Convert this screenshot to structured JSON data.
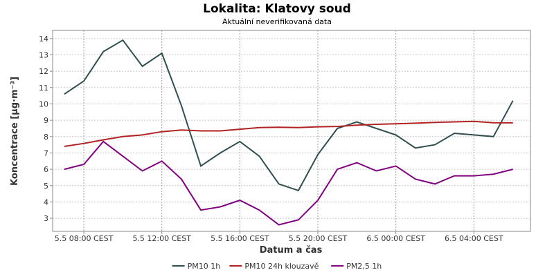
{
  "chart_data": {
    "type": "line",
    "title": "Lokalita: Klatovy soud",
    "subtitle": "Aktuální neverifikovaná data",
    "xlabel": "Datum a čas",
    "ylabel": "Koncentrace [µg·m⁻³]",
    "ylim": [
      2.2,
      14.5
    ],
    "yticks": [
      3,
      4,
      5,
      6,
      7,
      8,
      9,
      10,
      11,
      12,
      13,
      14
    ],
    "x_start": "2025-05-05T07:00",
    "x_step_hours": 1,
    "x": [
      "5.5 07:00",
      "5.5 08:00",
      "5.5 09:00",
      "5.5 10:00",
      "5.5 11:00",
      "5.5 12:00",
      "5.5 13:00",
      "5.5 14:00",
      "5.5 15:00",
      "5.5 16:00",
      "5.5 17:00",
      "5.5 18:00",
      "5.5 19:00",
      "5.5 20:00",
      "5.5 21:00",
      "5.5 22:00",
      "5.5 23:00",
      "6.5 00:00",
      "6.5 01:00",
      "6.5 02:00",
      "6.5 03:00",
      "6.5 04:00",
      "6.5 05:00",
      "6.5 06:00"
    ],
    "xlim_hours": [
      -0.6,
      23.9
    ],
    "xticks": [
      {
        "offset": 1,
        "label": "5.5 08:00 CEST"
      },
      {
        "offset": 5,
        "label": "5.5 12:00 CEST"
      },
      {
        "offset": 9,
        "label": "5.5 16:00 CEST"
      },
      {
        "offset": 13,
        "label": "5.5 20:00 CEST"
      },
      {
        "offset": 17,
        "label": "6.5 00:00 CEST"
      },
      {
        "offset": 21,
        "label": "6.5 04:00 CEST"
      }
    ],
    "grid": true,
    "legend_position": "bottom",
    "series": [
      {
        "name": "PM10 1h",
        "color": "#2f4f4f",
        "values": [
          10.6,
          11.4,
          13.2,
          13.9,
          12.3,
          13.1,
          9.9,
          6.2,
          7.0,
          7.7,
          6.8,
          5.1,
          4.7,
          6.9,
          8.5,
          8.9,
          8.5,
          8.1,
          7.3,
          7.5,
          8.2,
          8.1,
          8.0,
          10.2
        ]
      },
      {
        "name": "PM10 24h klouzavě",
        "color": "#b22222",
        "values": [
          7.4,
          7.58,
          7.8,
          8.0,
          8.1,
          8.3,
          8.4,
          8.35,
          8.35,
          8.45,
          8.55,
          8.57,
          8.55,
          8.6,
          8.62,
          8.7,
          8.75,
          8.78,
          8.82,
          8.87,
          8.9,
          8.93,
          8.85,
          8.84
        ]
      },
      {
        "name": "PM2,5 1h",
        "color": "#800080",
        "values": [
          6.0,
          6.3,
          7.7,
          6.8,
          5.9,
          6.5,
          5.4,
          3.5,
          3.7,
          4.1,
          3.5,
          2.6,
          2.9,
          4.1,
          6.0,
          6.4,
          5.9,
          6.2,
          5.4,
          5.1,
          5.6,
          5.6,
          5.7,
          6.0
        ]
      }
    ]
  }
}
